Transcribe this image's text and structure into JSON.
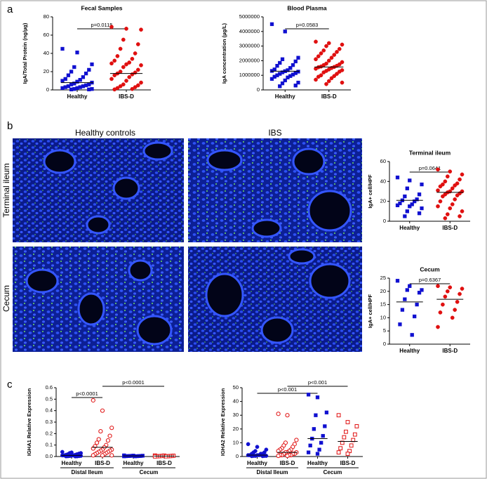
{
  "panel_labels": [
    "a",
    "b",
    "c"
  ],
  "image_panel": {
    "columns": [
      "Healthy controls",
      "IBS"
    ],
    "rows": [
      "Terminal ileum",
      "Cecum"
    ]
  },
  "chart_data": [
    {
      "type": "dotplot",
      "title": "Fecal Samples",
      "ylabel": "IgA/Total Protein (ng/µg)",
      "categories": [
        "Healthy",
        "IBS-D"
      ],
      "annotations": [
        "p=0.0115"
      ],
      "ylim": [
        0,
        80
      ],
      "yticks": [
        0,
        20,
        40,
        60,
        80
      ],
      "groups": [
        {
          "color": "#1010d0",
          "marker": "square",
          "filled": true,
          "center": 8,
          "values": [
            45,
            41,
            28,
            25,
            22,
            20,
            18,
            16,
            14,
            12,
            11,
            10,
            9,
            8,
            7,
            6,
            6,
            5,
            4,
            4,
            3,
            3,
            2,
            2,
            1,
            1,
            0.5,
            0.5
          ]
        },
        {
          "color": "#e01010",
          "marker": "circle",
          "filled": true,
          "center": 18,
          "values": [
            69,
            67,
            66,
            55,
            50,
            45,
            40,
            37,
            34,
            32,
            30,
            29,
            28,
            27,
            25,
            22,
            20,
            19,
            18,
            17,
            16,
            14,
            12,
            10,
            8,
            6,
            5,
            4,
            3,
            2,
            1,
            0.5
          ]
        }
      ]
    },
    {
      "type": "dotplot",
      "title": "Blood Plasma",
      "ylabel": "IgA concentration (µg/L)",
      "categories": [
        "Healthy",
        "IBS-D"
      ],
      "annotations": [
        "p=0.0583"
      ],
      "ylim": [
        0,
        5000000
      ],
      "yticks": [
        0,
        1000000,
        2000000,
        3000000,
        4000000,
        5000000
      ],
      "groups": [
        {
          "color": "#1010d0",
          "marker": "square",
          "filled": true,
          "center": 1280000,
          "values": [
            4500000,
            4000000,
            2200000,
            2100000,
            1950000,
            1850000,
            1700000,
            1650000,
            1500000,
            1400000,
            1350000,
            1300000,
            1280000,
            1250000,
            1200000,
            1150000,
            1100000,
            1050000,
            1000000,
            950000,
            900000,
            850000,
            750000,
            650000,
            500000,
            450000,
            300000,
            250000
          ]
        },
        {
          "color": "#e01010",
          "marker": "circle",
          "filled": true,
          "center": 1570000,
          "values": [
            3300000,
            3200000,
            3100000,
            3000000,
            2800000,
            2700000,
            2600000,
            2500000,
            2400000,
            2300000,
            2200000,
            2100000,
            2000000,
            1900000,
            1800000,
            1750000,
            1700000,
            1650000,
            1600000,
            1570000,
            1550000,
            1500000,
            1450000,
            1400000,
            1350000,
            1300000,
            1250000,
            1200000,
            1100000,
            1000000,
            950000,
            900000,
            800000,
            700000,
            600000,
            500000,
            400000
          ]
        }
      ]
    },
    {
      "type": "dotplot",
      "title": "Terminal ileum",
      "ylabel": "IgA+ cell/HPF",
      "categories": [
        "Healthy",
        "IBS-D"
      ],
      "annotations": [
        "p=0.0641"
      ],
      "ylim": [
        0,
        60
      ],
      "yticks": [
        0,
        20,
        40,
        60
      ],
      "groups": [
        {
          "color": "#1010d0",
          "marker": "square",
          "filled": true,
          "center": 21,
          "values": [
            44,
            41,
            37,
            33,
            27,
            25,
            22,
            21,
            20,
            18,
            17,
            16,
            15,
            13,
            10,
            8,
            5
          ]
        },
        {
          "color": "#e01010",
          "marker": "circle",
          "filled": true,
          "center": 29,
          "values": [
            52,
            50,
            47,
            45,
            42,
            40,
            38,
            37,
            36,
            35,
            33,
            31,
            30,
            30,
            29,
            28,
            27,
            26,
            25,
            22,
            20,
            17,
            15,
            13,
            10,
            7,
            5,
            3
          ]
        }
      ]
    },
    {
      "type": "dotplot",
      "title": "Cecum",
      "ylabel": "IgA+ cell/HPF",
      "categories": [
        "Healthy",
        "IBS-D"
      ],
      "annotations": [
        "p=0.6367"
      ],
      "ylim": [
        0,
        25
      ],
      "yticks": [
        0,
        5,
        10,
        15,
        20,
        25
      ],
      "groups": [
        {
          "color": "#1010d0",
          "marker": "square",
          "filled": true,
          "center": 16,
          "values": [
            24,
            22,
            20.5,
            20.5,
            19.5,
            17,
            15,
            13,
            10.5,
            7.5,
            3.5
          ]
        },
        {
          "color": "#e01010",
          "marker": "circle",
          "filled": true,
          "center": 17,
          "values": [
            22,
            21.5,
            21,
            20,
            19,
            18,
            16,
            15,
            13,
            12,
            10,
            6.5
          ]
        }
      ]
    },
    {
      "type": "dotplot",
      "ylabel": "IGHA1 Relative Expression",
      "categories": [
        "Healthy",
        "IBS-D",
        "Healthy",
        "IBS-D"
      ],
      "category_groups": [
        "Distal Ileum",
        "Cecum"
      ],
      "annotations": [
        "p<0.0001",
        "p<0.0001"
      ],
      "ylim": [
        0,
        0.6
      ],
      "yticks": [
        {
          "value": 0,
          "label": "0.0"
        },
        0.1,
        0.2,
        0.3,
        0.4,
        0.5,
        0.6
      ],
      "groups": [
        {
          "color": "#1010d0",
          "marker": "circle",
          "filled": true,
          "center": 0.01,
          "values": [
            0.04,
            0.035,
            0.03,
            0.03,
            0.025,
            0.02,
            0.02,
            0.015,
            0.015,
            0.01,
            0.01,
            0.01,
            0.008,
            0.006,
            0.005,
            0.004,
            0.003,
            0.002,
            0.002,
            0.001
          ]
        },
        {
          "color": "#e01010",
          "marker": "circle",
          "filled": false,
          "center": 0.08,
          "values": [
            0.49,
            0.4,
            0.25,
            0.22,
            0.18,
            0.15,
            0.14,
            0.12,
            0.1,
            0.09,
            0.08,
            0.07,
            0.06,
            0.06,
            0.05,
            0.05,
            0.04,
            0.04,
            0.03,
            0.03,
            0.02,
            0.02,
            0.01,
            0.01,
            0.01
          ]
        },
        {
          "color": "#1010d0",
          "marker": "square",
          "filled": true,
          "center": 0.005,
          "values": [
            0.01,
            0.008,
            0.007,
            0.006,
            0.005,
            0.005,
            0.004,
            0.004,
            0.003,
            0.003,
            0.002,
            0.002
          ]
        },
        {
          "color": "#e01010",
          "marker": "square",
          "filled": false,
          "center": 0.004,
          "values": [
            0.009,
            0.008,
            0.007,
            0.006,
            0.005,
            0.004,
            0.004,
            0.003,
            0.003,
            0.002,
            0.002,
            0.001
          ]
        }
      ]
    },
    {
      "type": "dotplot",
      "ylabel": "IGHA2 Relative Expression",
      "categories": [
        "Healthy",
        "IBS-D",
        "Healthy",
        "IBS-D"
      ],
      "category_groups": [
        "Distal Ileum",
        "Cecum"
      ],
      "annotations": [
        "p<0.001",
        "p<0.001"
      ],
      "ylim": [
        0,
        50
      ],
      "yticks": [
        0,
        10,
        20,
        30,
        40,
        50
      ],
      "groups": [
        {
          "color": "#1010d0",
          "marker": "circle",
          "filled": true,
          "center": 1,
          "values": [
            9,
            7,
            5,
            4,
            3,
            3,
            2,
            2,
            2,
            1,
            1,
            1,
            1,
            0.5,
            0.5,
            0.5,
            0.5,
            0.3,
            0.3
          ]
        },
        {
          "color": "#e01010",
          "marker": "circle",
          "filled": false,
          "center": 3,
          "values": [
            31,
            30,
            12,
            10,
            9,
            8,
            7,
            6,
            5,
            5,
            4,
            4,
            3,
            3,
            3,
            2,
            2,
            2,
            1,
            1,
            1,
            1,
            0.5,
            0.5
          ]
        },
        {
          "color": "#1010d0",
          "marker": "square",
          "filled": true,
          "center": 13,
          "values": [
            45,
            43,
            32,
            30,
            22,
            20,
            15,
            13,
            10,
            8,
            5,
            3,
            2
          ]
        },
        {
          "color": "#e01010",
          "marker": "square",
          "filled": false,
          "center": 11,
          "values": [
            30,
            25,
            22,
            18,
            16,
            14,
            12,
            10,
            8,
            6,
            4,
            3,
            2
          ]
        }
      ]
    }
  ]
}
